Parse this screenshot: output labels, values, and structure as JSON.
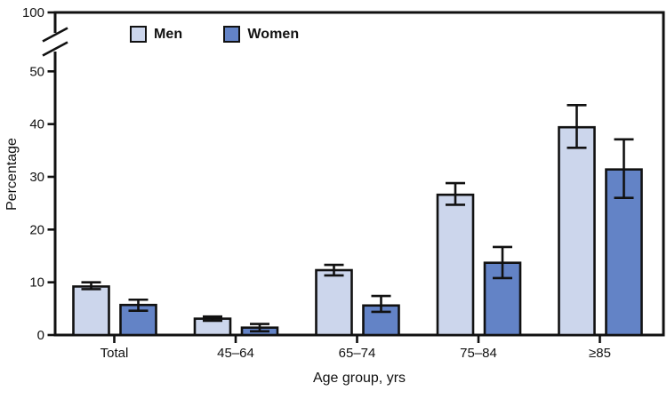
{
  "chart": {
    "ylabel": "Percentage",
    "xlabel": "Age group, yrs"
  },
  "colors": {
    "men_fill": "#ccd6ec",
    "women_fill": "#6383c6",
    "axis": "#111111"
  },
  "chart_data": {
    "type": "bar",
    "title": "",
    "xlabel": "Age group, yrs",
    "ylabel": "Percentage",
    "categories": [
      "Total",
      "45–64",
      "65–74",
      "75–84",
      "≥85"
    ],
    "series": [
      {
        "name": "Men",
        "color": "#ccd6ec",
        "values": [
          9.2,
          3.1,
          12.3,
          26.6,
          39.4
        ],
        "ci_low": [
          8.7,
          2.7,
          11.3,
          24.7,
          35.5
        ],
        "ci_high": [
          10.0,
          3.5,
          13.3,
          28.8,
          43.6
        ]
      },
      {
        "name": "Women",
        "color": "#6383c6",
        "values": [
          5.7,
          1.4,
          5.6,
          13.7,
          31.4
        ],
        "ci_low": [
          4.6,
          0.7,
          4.4,
          10.8,
          26.0
        ],
        "ci_high": [
          6.7,
          2.1,
          7.4,
          16.7,
          37.1
        ]
      }
    ],
    "y_ticks": [
      0,
      10,
      20,
      30,
      40,
      50
    ],
    "y_top_tick": 100,
    "axis_break": {
      "between": [
        55,
        100
      ]
    },
    "error_bars": true,
    "grid": false,
    "legend_position": "top-inside"
  }
}
